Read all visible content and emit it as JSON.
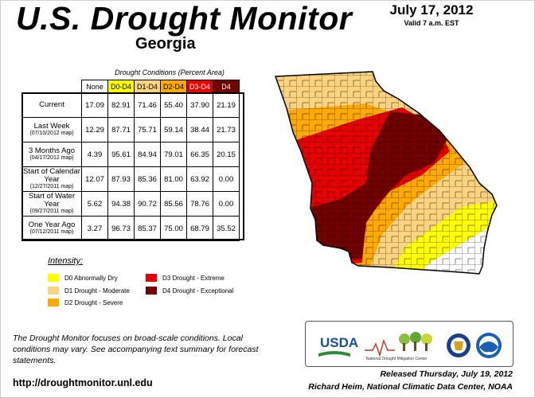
{
  "header": {
    "title": "U.S. Drought Monitor",
    "region": "Georgia",
    "date": "July 17, 2012",
    "valid": "Valid 7 a.m. EST"
  },
  "table": {
    "caption": "Drought Conditions (Percent Area)",
    "columns": [
      {
        "label": "None",
        "color": "#ffffff"
      },
      {
        "label": "D0-D4",
        "color": "#ffff00"
      },
      {
        "label": "D1-D4",
        "color": "#fcd37f"
      },
      {
        "label": "D2-D4",
        "color": "#ffaa00"
      },
      {
        "label": "D3-D4",
        "color": "#e60000"
      },
      {
        "label": "D4",
        "color": "#730000"
      }
    ],
    "rows": [
      {
        "label": "Current",
        "sub": "",
        "values": [
          "17.09",
          "82.91",
          "71.46",
          "55.40",
          "37.90",
          "21.19"
        ]
      },
      {
        "label": "Last Week",
        "sub": "(07/10/2012 map)",
        "values": [
          "12.29",
          "87.71",
          "75.71",
          "59.14",
          "38.44",
          "21.73"
        ]
      },
      {
        "label": "3 Months Ago",
        "sub": "(04/17/2012 map)",
        "values": [
          "4.39",
          "95.61",
          "84.94",
          "79.01",
          "66.35",
          "20.15"
        ]
      },
      {
        "label": "Start of Calendar Year",
        "sub": "(12/27/2011 map)",
        "values": [
          "12.07",
          "87.93",
          "85.36",
          "81.00",
          "63.92",
          "0.00"
        ]
      },
      {
        "label": "Start of Water Year",
        "sub": "(09/27/2011 map)",
        "values": [
          "5.62",
          "94.38",
          "90.72",
          "85.56",
          "78.76",
          "0.00"
        ]
      },
      {
        "label": "One Year Ago",
        "sub": "(07/12/2011 map)",
        "values": [
          "3.27",
          "96.73",
          "85.37",
          "75.00",
          "68.79",
          "35.52"
        ]
      }
    ]
  },
  "legend": {
    "title": "Intensity:",
    "items": [
      {
        "label": "D0 Abnormally Dry",
        "color": "#ffff00"
      },
      {
        "label": "D1 Drought - Moderate",
        "color": "#fcd37f"
      },
      {
        "label": "D2 Drought - Severe",
        "color": "#ffaa00"
      },
      {
        "label": "D3 Drought - Extreme",
        "color": "#e60000"
      },
      {
        "label": "D4 Drought - Exceptional",
        "color": "#730000"
      }
    ]
  },
  "footer": {
    "note": "The Drought Monitor focuses on broad-scale conditions. Local conditions may vary. See accompanying text summary for forecast statements.",
    "url": "http://droughtmonitor.unl.edu",
    "released": "Released Thursday, July 19, 2012",
    "author": "Richard Heim, National Climatic Data Center, NOAA"
  },
  "logos": {
    "usda": "USDA",
    "ndmc": "National Drought Mitigation Center"
  }
}
